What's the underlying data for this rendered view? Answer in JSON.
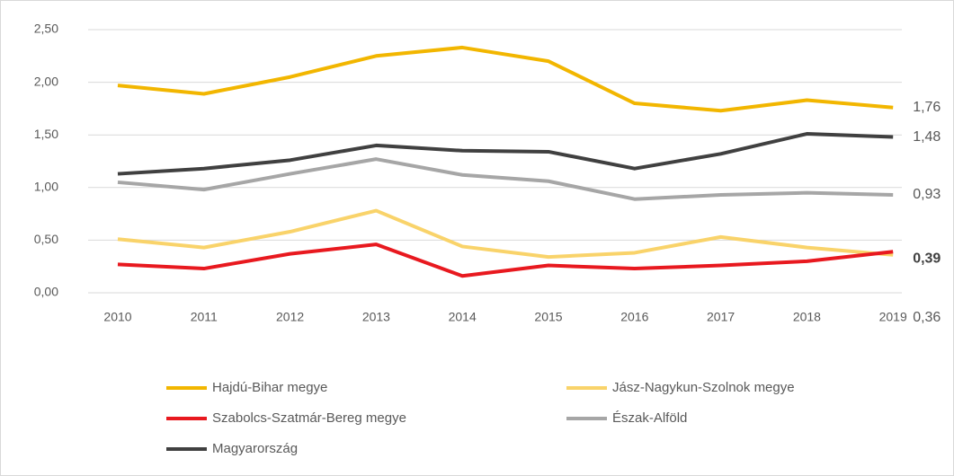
{
  "chart_data": {
    "type": "line",
    "categories": [
      "2010",
      "2011",
      "2012",
      "2013",
      "2014",
      "2015",
      "2016",
      "2017",
      "2018",
      "2019"
    ],
    "ylim": [
      0,
      2.5
    ],
    "yticks": [
      {
        "value": 0,
        "label": "0,00"
      },
      {
        "value": 0.5,
        "label": "0,50"
      },
      {
        "value": 1,
        "label": "1,00"
      },
      {
        "value": 1.5,
        "label": "1,50"
      },
      {
        "value": 2,
        "label": "2,00"
      },
      {
        "value": 2.5,
        "label": "2,50"
      }
    ],
    "grid": true,
    "legend": "bottom",
    "series": [
      {
        "name": "Hajdú-Bihar megye",
        "color": "#f2b600",
        "values": [
          1.97,
          1.89,
          2.05,
          2.25,
          2.33,
          2.2,
          1.8,
          1.73,
          1.83,
          1.76
        ],
        "value_labels": [
          null,
          null,
          null,
          null,
          null,
          null,
          null,
          null,
          null,
          "1,76"
        ]
      },
      {
        "name": "Jász-Nagykun-Szolnok megye",
        "color": "#f9d36a",
        "values": [
          0.51,
          0.43,
          0.58,
          0.78,
          0.44,
          0.34,
          0.38,
          0.53,
          0.43,
          0.36
        ],
        "value_labels": [
          null,
          null,
          null,
          null,
          null,
          null,
          null,
          null,
          null,
          "0,36"
        ]
      },
      {
        "name": "Szabolcs-Szatmár-Bereg megye",
        "color": "#e8191f",
        "values": [
          0.27,
          0.23,
          0.37,
          0.46,
          0.16,
          0.26,
          0.23,
          0.26,
          0.3,
          0.39
        ],
        "value_labels": [
          null,
          null,
          null,
          null,
          null,
          null,
          null,
          null,
          null,
          "0,39"
        ],
        "value_label_bold": true
      },
      {
        "name": "Észak-Alföld",
        "color": "#a6a6a6",
        "values": [
          1.05,
          0.98,
          1.13,
          1.27,
          1.12,
          1.06,
          0.89,
          0.93,
          0.95,
          0.93
        ],
        "value_labels": [
          null,
          null,
          null,
          null,
          null,
          null,
          null,
          null,
          null,
          "0,93"
        ]
      },
      {
        "name": "Magyarország",
        "color": "#404040",
        "values": [
          1.13,
          1.18,
          1.26,
          1.4,
          1.35,
          1.34,
          1.18,
          1.32,
          1.51,
          1.48
        ],
        "value_labels": [
          null,
          null,
          null,
          null,
          null,
          null,
          null,
          null,
          null,
          "1,48"
        ]
      }
    ]
  }
}
